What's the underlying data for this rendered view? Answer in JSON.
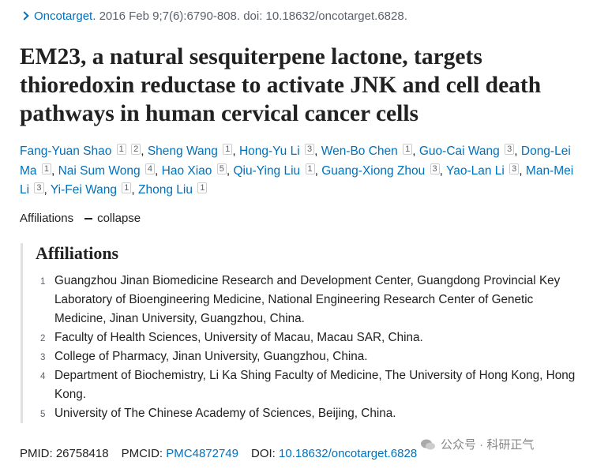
{
  "citation": {
    "journal": "Oncotarget.",
    "details": "2016 Feb 9;7(6):6790-808. doi: 10.18632/oncotarget.6828."
  },
  "title": "EM23, a natural sesquiterpene lactone, targets thioredoxin reductase to activate JNK and cell death pathways in human cervical cancer cells",
  "author_separator": ",",
  "authors": [
    {
      "name": "Fang-Yuan Shao",
      "affiliations": [
        1,
        2
      ]
    },
    {
      "name": "Sheng Wang",
      "affiliations": [
        1
      ]
    },
    {
      "name": "Hong-Yu Li",
      "affiliations": [
        3
      ]
    },
    {
      "name": "Wen-Bo Chen",
      "affiliations": [
        1
      ]
    },
    {
      "name": "Guo-Cai Wang",
      "affiliations": [
        3
      ]
    },
    {
      "name": "Dong-Lei Ma",
      "affiliations": [
        1
      ]
    },
    {
      "name": "Nai Sum Wong",
      "affiliations": [
        4
      ]
    },
    {
      "name": "Hao Xiao",
      "affiliations": [
        5
      ]
    },
    {
      "name": "Qiu-Ying Liu",
      "affiliations": [
        1
      ]
    },
    {
      "name": "Guang-Xiong Zhou",
      "affiliations": [
        3
      ]
    },
    {
      "name": "Yao-Lan Li",
      "affiliations": [
        3
      ]
    },
    {
      "name": "Man-Mei Li",
      "affiliations": [
        3
      ]
    },
    {
      "name": "Yi-Fei Wang",
      "affiliations": [
        1
      ]
    },
    {
      "name": "Zhong Liu",
      "affiliations": [
        1
      ]
    }
  ],
  "affiliations_toggle": {
    "label": "Affiliations",
    "action": "collapse"
  },
  "affiliations": {
    "heading": "Affiliations",
    "items": [
      {
        "number": 1,
        "text": "Guangzhou Jinan Biomedicine Research and Development Center, Guangdong Provincial Key Laboratory of Bioengineering Medicine, National Engineering Research Center of Genetic Medicine, Jinan University, Guangzhou, China."
      },
      {
        "number": 2,
        "text": "Faculty of Health Sciences, University of Macau, Macau SAR, China."
      },
      {
        "number": 3,
        "text": "College of Pharmacy, Jinan University, Guangzhou, China."
      },
      {
        "number": 4,
        "text": "Department of Biochemistry, Li Ka Shing Faculty of Medicine, The University of Hong Kong, Hong Kong."
      },
      {
        "number": 5,
        "text": "University of The Chinese Academy of Sciences, Beijing, China."
      }
    ]
  },
  "identifiers": [
    {
      "label": "PMID:",
      "value": "26758418",
      "link": false
    },
    {
      "label": "PMCID:",
      "value": "PMC4872749",
      "link": true
    },
    {
      "label": "DOI:",
      "value": "10.18632/oncotarget.6828",
      "link": true
    }
  ],
  "watermark": "公众号 · 科研正气"
}
